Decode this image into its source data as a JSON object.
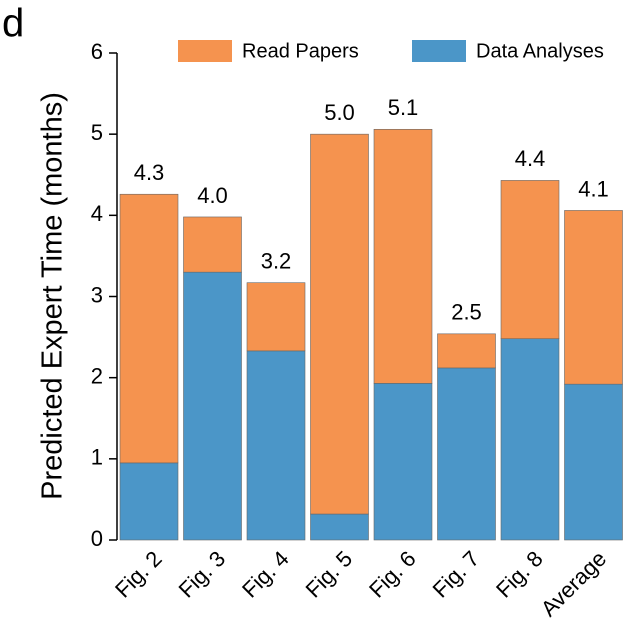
{
  "panel_label": "d",
  "chart_data": {
    "type": "stacked_bar",
    "y_label": "Predicted Expert Time (months)",
    "categories": [
      "Fig. 2",
      "Fig. 3",
      "Fig. 4",
      "Fig. 5",
      "Fig. 6",
      "Fig. 7",
      "Fig. 8",
      "Average"
    ],
    "series": [
      {
        "name": "Read Papers",
        "color": "#f5934f",
        "values": [
          3.31,
          0.68,
          0.84,
          4.68,
          3.13,
          0.42,
          1.95,
          2.14
        ]
      },
      {
        "name": "Data Analyses",
        "color": "#4b96c8",
        "values": [
          0.95,
          3.3,
          2.33,
          0.32,
          1.93,
          2.12,
          2.48,
          1.92
        ]
      }
    ],
    "totals": {
      "values": [
        4.26,
        3.98,
        3.17,
        5.0,
        5.06,
        2.54,
        4.43,
        4.06
      ],
      "value_labels": [
        "4.3",
        "4.0",
        "3.2",
        "5.0",
        "5.1",
        "2.5",
        "4.4",
        "4.1"
      ]
    },
    "ylim": [
      0,
      6
    ],
    "yticks": [
      0,
      1,
      2,
      3,
      4,
      5,
      6
    ],
    "grid": false,
    "legend": "top"
  }
}
